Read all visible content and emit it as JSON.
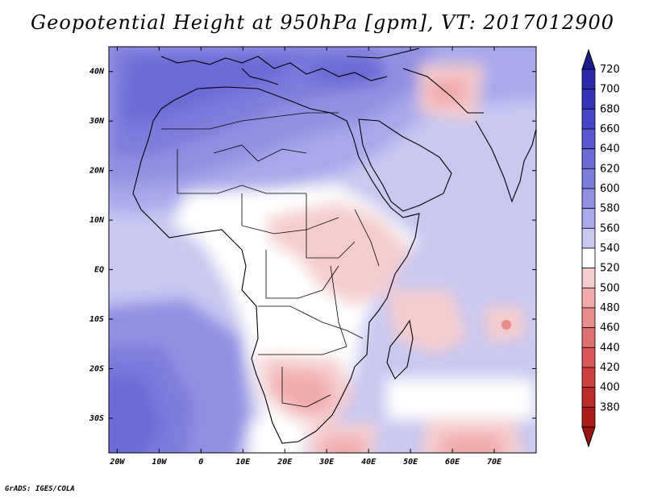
{
  "title": "Geopotential Height at 950hPa [gpm], VT: 2017012900",
  "credit": "GrADS: IGES/COLA",
  "map": {
    "lon_range": [
      -22,
      80
    ],
    "lat_range": [
      -37,
      45
    ],
    "lat_labels": [
      "40N",
      "30N",
      "20N",
      "10N",
      "EQ",
      "10S",
      "20S",
      "30S"
    ],
    "lat_values": [
      40,
      30,
      20,
      10,
      0,
      -10,
      -20,
      -30
    ],
    "lon_labels": [
      "20W",
      "10W",
      "0",
      "10E",
      "20E",
      "30E",
      "40E",
      "50E",
      "60E",
      "70E"
    ],
    "lon_values": [
      -20,
      -10,
      0,
      10,
      20,
      30,
      40,
      50,
      60,
      70
    ]
  },
  "colorbar": {
    "levels": [
      "720",
      "700",
      "680",
      "660",
      "640",
      "620",
      "600",
      "580",
      "560",
      "540",
      "520",
      "500",
      "480",
      "460",
      "440",
      "420",
      "400",
      "380"
    ],
    "colors": [
      "#2a2aa8",
      "#3434b8",
      "#4646c8",
      "#5858d2",
      "#6a6ad8",
      "#7c7cdc",
      "#9090e2",
      "#a8a8ea",
      "#c8c8f2",
      "#ffffff",
      "#f6cccc",
      "#f0aaaa",
      "#e88c8c",
      "#e07070",
      "#d85858",
      "#cc4040",
      "#bc2c2c",
      "#aa1c1c"
    ],
    "top_arrow": "#1c1c8c",
    "bottom_arrow": "#961414"
  }
}
